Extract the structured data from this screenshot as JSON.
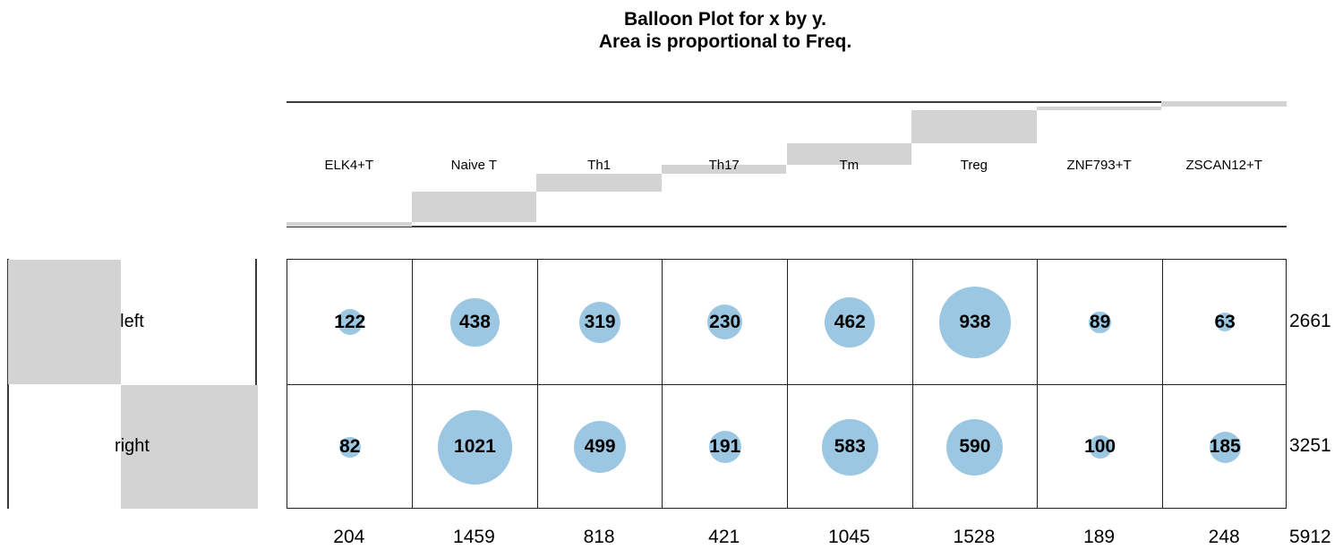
{
  "title": {
    "line1": "Balloon Plot for x by y.",
    "line2": "Area is proportional to Freq."
  },
  "colors": {
    "balloon_fill": "#9bc7e2",
    "margin_bar_gray": "#d3d3d3",
    "margin_line": "#3a3a3a",
    "grid_line": "#1f1f1f"
  },
  "chart_data": {
    "type": "balloon",
    "title": "Balloon Plot for x by y.",
    "subtitle": "Area is proportional to Freq.",
    "x_categories": [
      "ELK4+T",
      "Naive T",
      "Th1",
      "Th17",
      "Tm",
      "Treg",
      "ZNF793+T",
      "ZSCAN12+T"
    ],
    "y_categories": [
      "left",
      "right"
    ],
    "series": [
      {
        "name": "left",
        "values": [
          122,
          438,
          319,
          230,
          462,
          938,
          89,
          63
        ]
      },
      {
        "name": "right",
        "values": [
          82,
          1021,
          499,
          191,
          583,
          590,
          100,
          185
        ]
      }
    ],
    "row_totals": [
      2661,
      3251
    ],
    "col_totals": [
      204,
      1459,
      818,
      421,
      1045,
      1528,
      189,
      248
    ],
    "grand_total": 5912,
    "layout_hints": {
      "area_proportional_to_value": true,
      "margin_bars": "cumulative share of grand total, gray staircase",
      "legend": "none",
      "grid": "table cells"
    }
  }
}
